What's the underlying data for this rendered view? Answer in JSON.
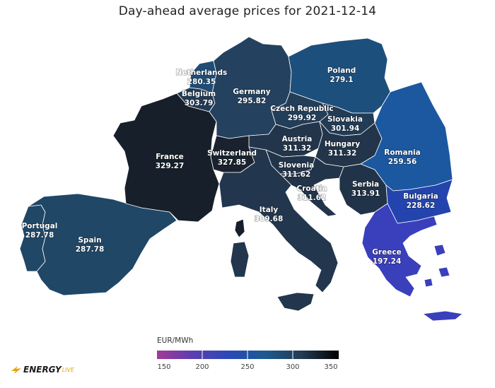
{
  "title": "Day-ahead average prices for 2021-12-14",
  "legend": {
    "title": "EUR/MWh",
    "ticks": [
      "150",
      "200",
      "250",
      "300",
      "350"
    ],
    "range": [
      150,
      350
    ],
    "colors": [
      "#a23a96",
      "#5a3fb0",
      "#2a4ab8",
      "#1c5a8e",
      "#243a52",
      "#000000"
    ]
  },
  "logo": {
    "brand": "ENERGY",
    "suffix": "LIVE"
  },
  "countries": [
    {
      "name": "Netherlands",
      "value": "280.35",
      "color": "#1f4d76"
    },
    {
      "name": "Belgium",
      "value": "303.79",
      "color": "#233b55"
    },
    {
      "name": "Germany",
      "value": "295.82",
      "color": "#24425f"
    },
    {
      "name": "Poland",
      "value": "279.1",
      "color": "#1d4f7c"
    },
    {
      "name": "Czech Republic",
      "value": "299.92",
      "color": "#233e59"
    },
    {
      "name": "Slovakia",
      "value": "301.94",
      "color": "#233c56"
    },
    {
      "name": "Austria",
      "value": "311.32",
      "color": "#22354b"
    },
    {
      "name": "Hungary",
      "value": "311.32",
      "color": "#22354b"
    },
    {
      "name": "France",
      "value": "329.27",
      "color": "#171f2a"
    },
    {
      "name": "Switzerland",
      "value": "327.85",
      "color": "#19222e"
    },
    {
      "name": "Slovenia",
      "value": "311.62",
      "color": "#22344a"
    },
    {
      "name": "Croatia",
      "value": "311.62",
      "color": "#22344a"
    },
    {
      "name": "Romania",
      "value": "259.56",
      "color": "#1b58a0"
    },
    {
      "name": "Serbia",
      "value": "313.91",
      "color": "#213348"
    },
    {
      "name": "Bulgaria",
      "value": "228.62",
      "color": "#2444ad"
    },
    {
      "name": "Italy",
      "value": "309.68",
      "color": "#22364d"
    },
    {
      "name": "Portugal",
      "value": "287.78",
      "color": "#214767"
    },
    {
      "name": "Spain",
      "value": "287.78",
      "color": "#214767"
    },
    {
      "name": "Greece",
      "value": "197.24",
      "color": "#3a3fbc"
    }
  ]
}
